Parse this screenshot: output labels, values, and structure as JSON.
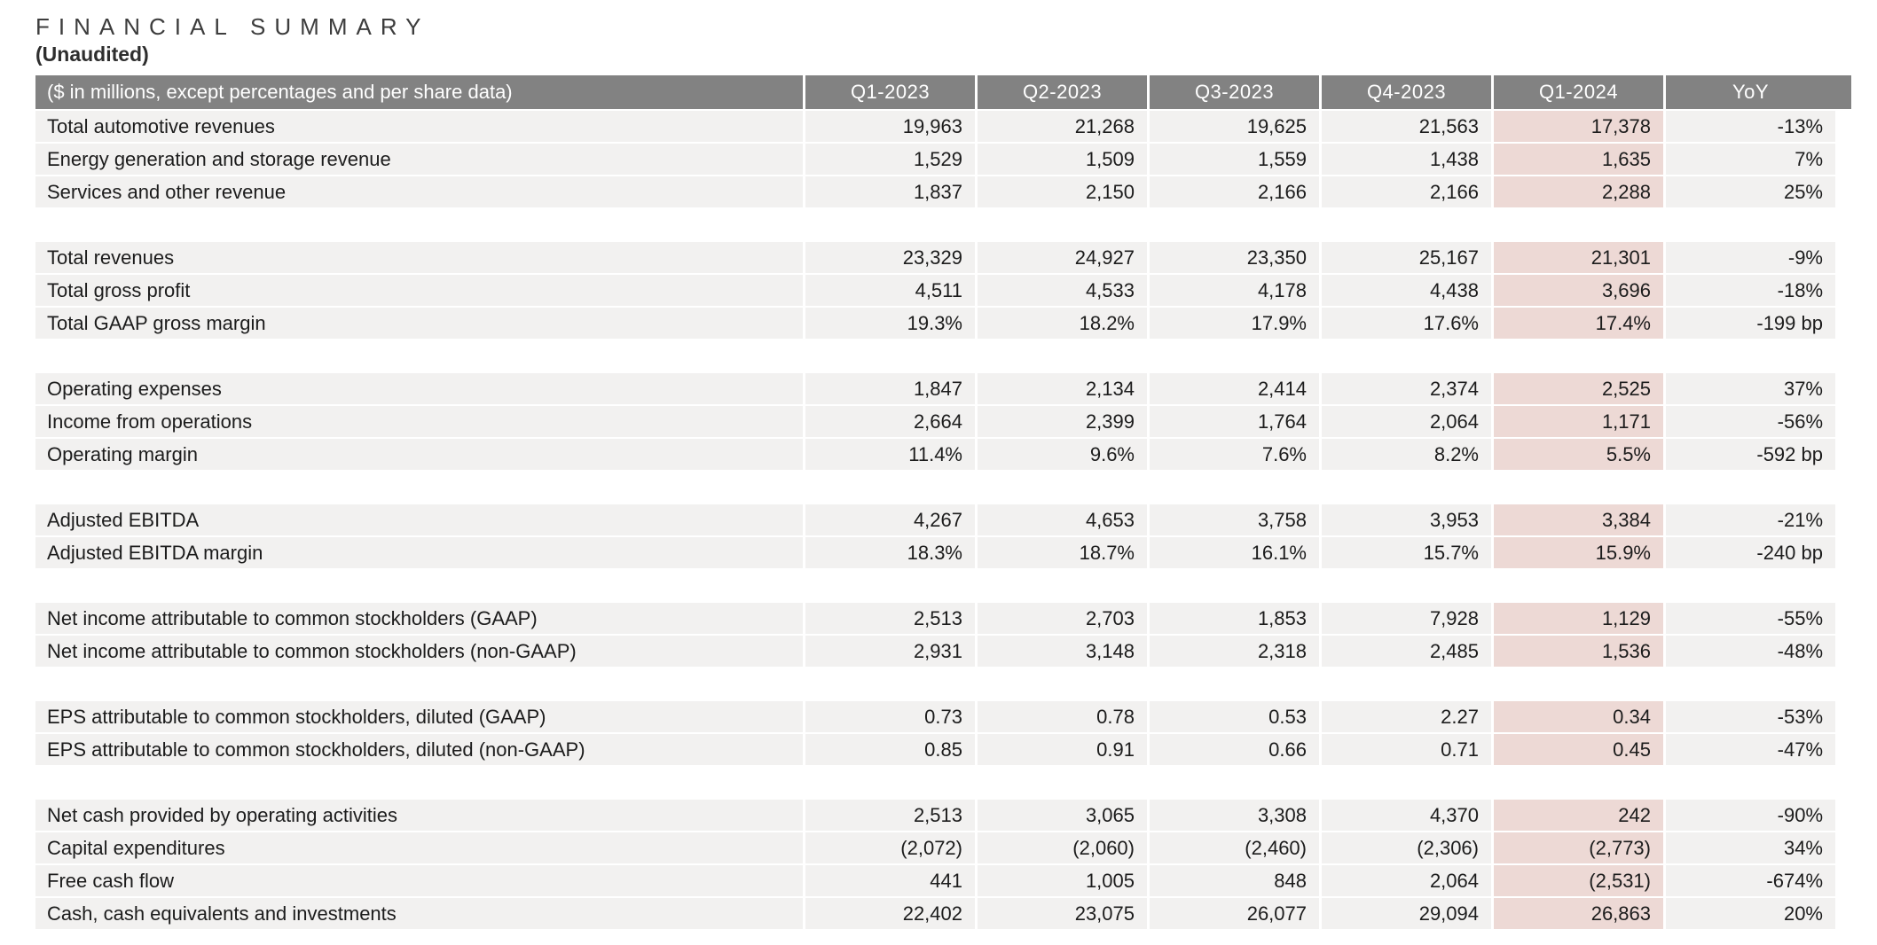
{
  "title": "FINANCIAL SUMMARY",
  "subtitle": "(Unaudited)",
  "colors": {
    "header_bg": "#828282",
    "row_bg": "#f2f1f0",
    "highlight_bg": "#edd9d5",
    "text": "#1c1c1c"
  },
  "table": {
    "header_label": "($ in millions, except percentages and per share data)",
    "columns": [
      "Q1-2023",
      "Q2-2023",
      "Q3-2023",
      "Q4-2023",
      "Q1-2024",
      "YoY"
    ],
    "highlight_column": "Q1-2024",
    "highlight_column_index": 4,
    "groups": [
      {
        "rows": [
          {
            "label": "Total automotive revenues",
            "values": [
              "19,963",
              "21,268",
              "19,625",
              "21,563",
              "17,378",
              "-13%"
            ]
          },
          {
            "label": "Energy generation and storage revenue",
            "values": [
              "1,529",
              "1,509",
              "1,559",
              "1,438",
              "1,635",
              "7%"
            ]
          },
          {
            "label": "Services and other revenue",
            "values": [
              "1,837",
              "2,150",
              "2,166",
              "2,166",
              "2,288",
              "25%"
            ]
          }
        ]
      },
      {
        "rows": [
          {
            "label": "Total revenues",
            "values": [
              "23,329",
              "24,927",
              "23,350",
              "25,167",
              "21,301",
              "-9%"
            ]
          },
          {
            "label": "Total gross profit",
            "values": [
              "4,511",
              "4,533",
              "4,178",
              "4,438",
              "3,696",
              "-18%"
            ]
          },
          {
            "label": "Total GAAP gross margin",
            "values": [
              "19.3%",
              "18.2%",
              "17.9%",
              "17.6%",
              "17.4%",
              "-199 bp"
            ]
          }
        ]
      },
      {
        "rows": [
          {
            "label": "Operating expenses",
            "values": [
              "1,847",
              "2,134",
              "2,414",
              "2,374",
              "2,525",
              "37%"
            ]
          },
          {
            "label": "Income from operations",
            "values": [
              "2,664",
              "2,399",
              "1,764",
              "2,064",
              "1,171",
              "-56%"
            ]
          },
          {
            "label": "Operating margin",
            "values": [
              "11.4%",
              "9.6%",
              "7.6%",
              "8.2%",
              "5.5%",
              "-592 bp"
            ]
          }
        ]
      },
      {
        "rows": [
          {
            "label": "Adjusted EBITDA",
            "values": [
              "4,267",
              "4,653",
              "3,758",
              "3,953",
              "3,384",
              "-21%"
            ]
          },
          {
            "label": "Adjusted EBITDA margin",
            "values": [
              "18.3%",
              "18.7%",
              "16.1%",
              "15.7%",
              "15.9%",
              "-240 bp"
            ]
          }
        ]
      },
      {
        "rows": [
          {
            "label": "Net income attributable to common stockholders (GAAP)",
            "values": [
              "2,513",
              "2,703",
              "1,853",
              "7,928",
              "1,129",
              "-55%"
            ]
          },
          {
            "label": "Net income attributable to common stockholders (non-GAAP)",
            "values": [
              "2,931",
              "3,148",
              "2,318",
              "2,485",
              "1,536",
              "-48%"
            ]
          }
        ]
      },
      {
        "rows": [
          {
            "label": "EPS attributable to common stockholders, diluted (GAAP)",
            "values": [
              "0.73",
              "0.78",
              "0.53",
              "2.27",
              "0.34",
              "-53%"
            ]
          },
          {
            "label": "EPS attributable to common stockholders, diluted (non-GAAP)",
            "values": [
              "0.85",
              "0.91",
              "0.66",
              "0.71",
              "0.45",
              "-47%"
            ]
          }
        ]
      },
      {
        "rows": [
          {
            "label": "Net cash provided by operating activities",
            "values": [
              "2,513",
              "3,065",
              "3,308",
              "4,370",
              "242",
              "-90%"
            ]
          },
          {
            "label": "Capital expenditures",
            "values": [
              "(2,072)",
              "(2,060)",
              "(2,460)",
              "(2,306)",
              "(2,773)",
              "34%"
            ]
          },
          {
            "label": "Free cash flow",
            "values": [
              "441",
              "1,005",
              "848",
              "2,064",
              "(2,531)",
              "-674%"
            ]
          },
          {
            "label": "Cash, cash equivalents and investments",
            "values": [
              "22,402",
              "23,075",
              "26,077",
              "29,094",
              "26,863",
              "20%"
            ]
          }
        ]
      }
    ]
  }
}
